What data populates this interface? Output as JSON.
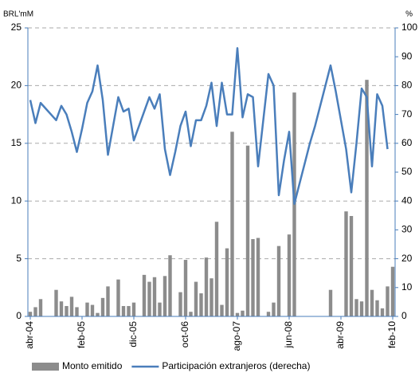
{
  "chart_data": {
    "type": "bar_line",
    "y_label": "BRL'mM",
    "y2_label": "%",
    "categories": [
      "abr-04",
      null,
      null,
      null,
      null,
      null,
      null,
      null,
      null,
      null,
      "feb-05",
      null,
      null,
      null,
      null,
      null,
      null,
      null,
      null,
      null,
      "dic-05",
      null,
      null,
      null,
      null,
      null,
      null,
      null,
      null,
      null,
      "oct-06",
      null,
      null,
      null,
      null,
      null,
      null,
      null,
      null,
      null,
      "ago-07",
      null,
      null,
      null,
      null,
      null,
      null,
      null,
      null,
      null,
      "jun-08",
      null,
      null,
      null,
      null,
      null,
      null,
      null,
      null,
      null,
      "abr-09",
      null,
      null,
      null,
      null,
      null,
      null,
      null,
      null,
      null,
      "feb-10"
    ],
    "series": [
      {
        "name": "Monto emitido",
        "color": "#8c8c8c",
        "type": "bar",
        "axis": "y",
        "values": [
          0.4,
          0.8,
          1.5,
          null,
          null,
          2.3,
          1.3,
          0.9,
          1.7,
          0.8,
          null,
          1.2,
          1.0,
          0.3,
          1.6,
          2.6,
          null,
          3.2,
          0.9,
          0.9,
          1.2,
          null,
          3.6,
          3.0,
          3.4,
          1.2,
          3.5,
          5.3,
          null,
          2.1,
          4.9,
          0.4,
          3.0,
          2.0,
          5.1,
          3.3,
          8.2,
          1.0,
          5.9,
          16.0,
          0.3,
          0.5,
          14.8,
          6.7,
          6.8,
          null,
          0.4,
          1.2,
          6.1,
          null,
          7.1,
          19.4,
          null,
          null,
          null,
          null,
          null,
          null,
          2.3,
          null,
          null,
          9.1,
          8.7,
          1.5,
          1.3,
          20.5,
          2.3,
          1.4,
          0.7,
          2.6,
          4.3
        ]
      },
      {
        "name": "Participación extranjeros (derecha)",
        "color": "#4a7ebb",
        "type": "line",
        "axis": "y2",
        "values": [
          75,
          67,
          74,
          72,
          70,
          68,
          73,
          70,
          64,
          57,
          65,
          74,
          78,
          87,
          75,
          56,
          66,
          76,
          71,
          72,
          61,
          66,
          71,
          76,
          72,
          77,
          58,
          49,
          57,
          66,
          71,
          59,
          68,
          68,
          73,
          81,
          66,
          81,
          70,
          70,
          93,
          69,
          77,
          76,
          52,
          68,
          84,
          80,
          42,
          54,
          64,
          39,
          46,
          53,
          60,
          66,
          73,
          80,
          87,
          78,
          68,
          58,
          43,
          60,
          79,
          76,
          52,
          77,
          73,
          58,
          null
        ]
      }
    ],
    "ylim": [
      0,
      25
    ],
    "yticks": [
      0,
      5,
      10,
      15,
      20,
      25
    ],
    "y2lim": [
      0,
      100
    ],
    "y2ticks": [
      0,
      10,
      20,
      30,
      40,
      50,
      60,
      70,
      80,
      90,
      100
    ],
    "grid": true,
    "legend": "bottom"
  }
}
